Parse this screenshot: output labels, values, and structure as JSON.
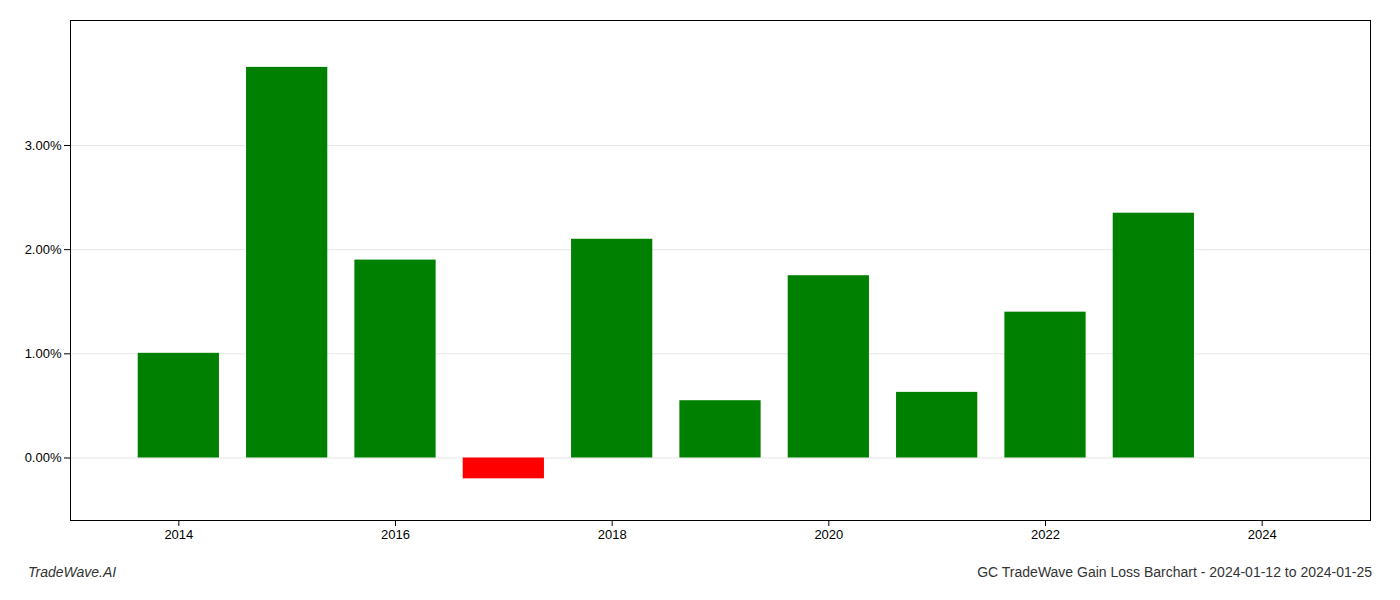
{
  "chart_data": {
    "type": "bar",
    "x": [
      2014,
      2015,
      2016,
      2017,
      2018,
      2019,
      2020,
      2021,
      2022,
      2023
    ],
    "values": [
      0.01005,
      0.0375,
      0.019,
      -0.002,
      0.021,
      0.0055,
      0.0175,
      0.0063,
      0.014,
      0.0235
    ],
    "colors": [
      "#008000",
      "#008000",
      "#008000",
      "#ff0000",
      "#008000",
      "#008000",
      "#008000",
      "#008000",
      "#008000",
      "#008000"
    ],
    "xlim": [
      2013,
      2025
    ],
    "xticks": [
      2014,
      2016,
      2018,
      2020,
      2022,
      2024
    ],
    "ylim": [
      -0.006,
      0.042
    ],
    "yticks": [
      {
        "value": 0.0,
        "label": "0.00%"
      },
      {
        "value": 0.01,
        "label": "1.00%"
      },
      {
        "value": 0.02,
        "label": "2.00%"
      },
      {
        "value": 0.03,
        "label": "3.00%"
      }
    ],
    "grid": true,
    "annotations": [
      "TradeWave.AI",
      "GC TradeWave Gain Loss Barchart - 2024-01-12 to 2024-01-25"
    ]
  }
}
